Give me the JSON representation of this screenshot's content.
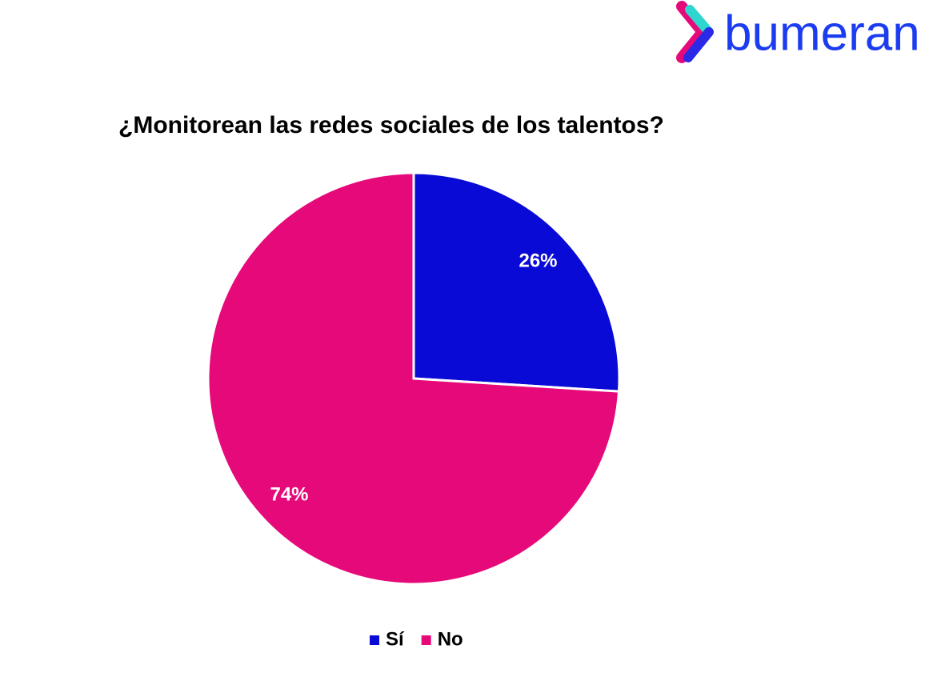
{
  "brand": "bumeran",
  "chart_data": {
    "type": "pie",
    "title": "¿Monitorean las redes sociales de los talentos?",
    "categories": [
      "Sí",
      "No"
    ],
    "values": [
      26,
      74
    ],
    "value_labels": [
      "26%",
      "74%"
    ],
    "colors": [
      "#0a0ad6",
      "#e6097a"
    ],
    "legend": "bottom"
  }
}
